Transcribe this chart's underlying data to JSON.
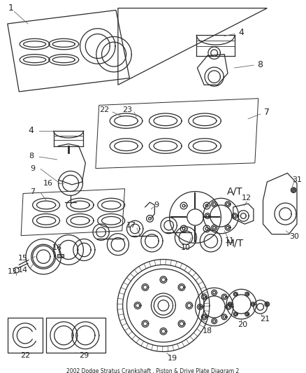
{
  "title": "2002 Dodge Stratus Crankshaft , Piston & Drive Plate Diagram 2",
  "bg_color": "#ffffff",
  "lc": "#2a2a2a",
  "figsize": [
    4.38,
    5.33
  ],
  "dpi": 100
}
